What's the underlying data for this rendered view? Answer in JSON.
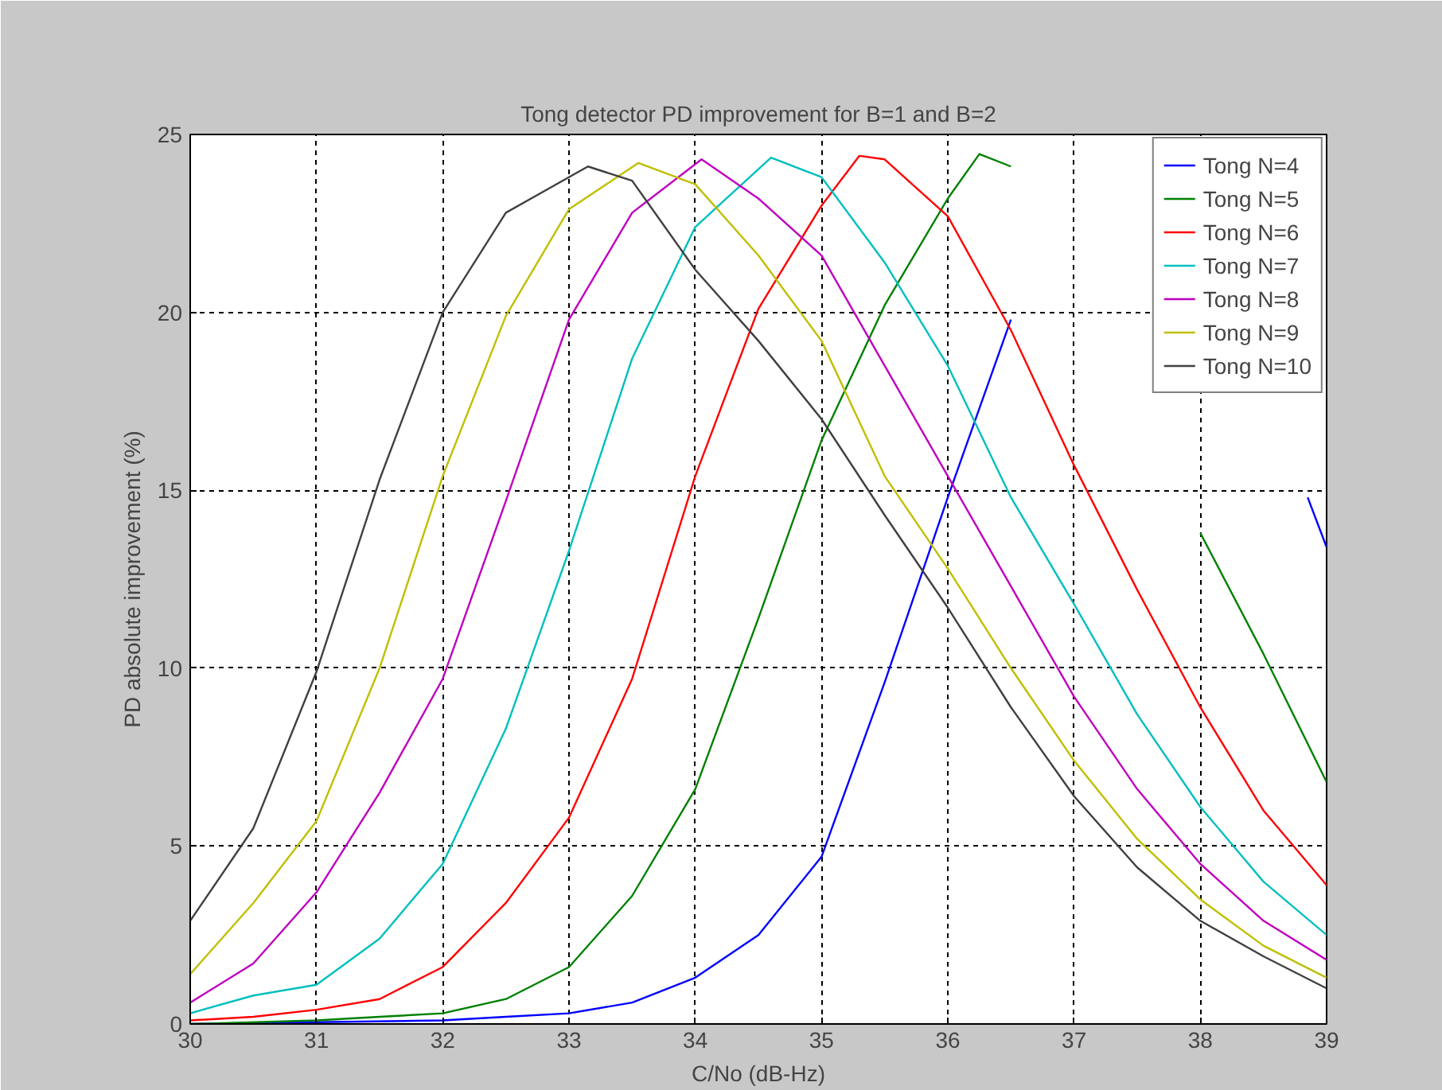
{
  "chart_data": {
    "type": "line",
    "title": "Tong detector PD improvement for B=1 and B=2",
    "xlabel": "C/No (dB-Hz)",
    "ylabel": "PD absolute improvement (%)",
    "xlim": [
      30,
      39
    ],
    "ylim": [
      0,
      25
    ],
    "xticks": [
      30,
      31,
      32,
      33,
      34,
      35,
      36,
      37,
      38,
      39
    ],
    "yticks": [
      0,
      5,
      10,
      15,
      20,
      25
    ],
    "grid": true,
    "legend": "top right",
    "line_style": "solid",
    "series": [
      {
        "name": "Tong N=4",
        "color": "#0000ff",
        "x": [
          30,
          31,
          32,
          32.5,
          33,
          33.5,
          34,
          34.5,
          35,
          35.5,
          36,
          36.5,
          37,
          37.5,
          38,
          38.5,
          38.85,
          39
        ],
        "values": [
          0,
          0.05,
          0.1,
          0.2,
          0.3,
          0.6,
          1.3,
          2.5,
          4.7,
          9.6,
          14.8,
          19.8,
          null,
          null,
          null,
          null,
          14.8,
          13.4
        ]
      },
      {
        "name": "Tong N=5",
        "color": "#008000",
        "x": [
          30,
          31,
          31.5,
          32,
          32.5,
          33,
          33.5,
          34,
          34.5,
          35,
          35.5,
          36,
          36.25,
          36.5,
          37,
          37.5,
          38,
          38.5,
          39
        ],
        "values": [
          0,
          0.1,
          0.2,
          0.3,
          0.7,
          1.6,
          3.6,
          6.6,
          11.4,
          16.4,
          20.2,
          23.2,
          24.45,
          24.1,
          null,
          null,
          13.8,
          10.4,
          6.8
        ]
      },
      {
        "name": "Tong N=6",
        "color": "#ff0000",
        "x": [
          30,
          30.5,
          31,
          31.5,
          32,
          32.5,
          33,
          33.5,
          34,
          34.5,
          35,
          35.3,
          35.5,
          36,
          36.5,
          37,
          37.5,
          38,
          38.5,
          39
        ],
        "values": [
          0.1,
          0.2,
          0.4,
          0.7,
          1.6,
          3.4,
          5.8,
          9.7,
          15.4,
          20.1,
          23.0,
          24.4,
          24.3,
          22.7,
          19.5,
          15.7,
          12.2,
          8.9,
          6.0,
          3.9
        ]
      },
      {
        "name": "Tong N=7",
        "color": "#00bfbf",
        "x": [
          30,
          30.5,
          31,
          31.5,
          32,
          32.5,
          33,
          33.5,
          34,
          34.6,
          35,
          35.5,
          36,
          36.5,
          37,
          37.5,
          38,
          38.5,
          39
        ],
        "values": [
          0.3,
          0.8,
          1.1,
          2.4,
          4.5,
          8.3,
          13.3,
          18.7,
          22.4,
          24.35,
          23.8,
          21.4,
          18.5,
          14.8,
          11.8,
          8.7,
          6.1,
          4.0,
          2.5
        ]
      },
      {
        "name": "Tong N=8",
        "color": "#bf00bf",
        "x": [
          30,
          30.5,
          31,
          31.5,
          32,
          32.5,
          33,
          33.5,
          34.05,
          34.5,
          35,
          35.5,
          36,
          36.5,
          37,
          37.5,
          38,
          38.5,
          39
        ],
        "values": [
          0.6,
          1.7,
          3.7,
          6.5,
          9.7,
          14.7,
          19.8,
          22.8,
          24.3,
          23.2,
          21.6,
          18.5,
          15.4,
          12.3,
          9.2,
          6.6,
          4.5,
          2.9,
          1.8
        ]
      },
      {
        "name": "Tong N=9",
        "color": "#bfbf00",
        "x": [
          30,
          30.5,
          31,
          31.5,
          32,
          32.5,
          33,
          33.55,
          34,
          34.5,
          35,
          35.5,
          36,
          36.5,
          37,
          37.5,
          38,
          38.5,
          39
        ],
        "values": [
          1.4,
          3.4,
          5.7,
          10.0,
          15.4,
          19.9,
          22.9,
          24.2,
          23.6,
          21.6,
          19.2,
          15.4,
          12.8,
          10.0,
          7.4,
          5.2,
          3.5,
          2.2,
          1.3
        ]
      },
      {
        "name": "Tong N=10",
        "color": "#404040",
        "x": [
          30,
          30.5,
          31,
          31.5,
          32,
          32.5,
          33.15,
          33.5,
          34,
          34.5,
          35,
          35.5,
          36,
          36.5,
          37,
          37.5,
          38,
          38.5,
          39
        ],
        "values": [
          2.9,
          5.5,
          9.9,
          15.3,
          20.0,
          22.8,
          24.1,
          23.7,
          21.2,
          19.2,
          17.0,
          14.3,
          11.7,
          8.9,
          6.4,
          4.4,
          2.9,
          1.9,
          1.0
        ]
      }
    ]
  }
}
